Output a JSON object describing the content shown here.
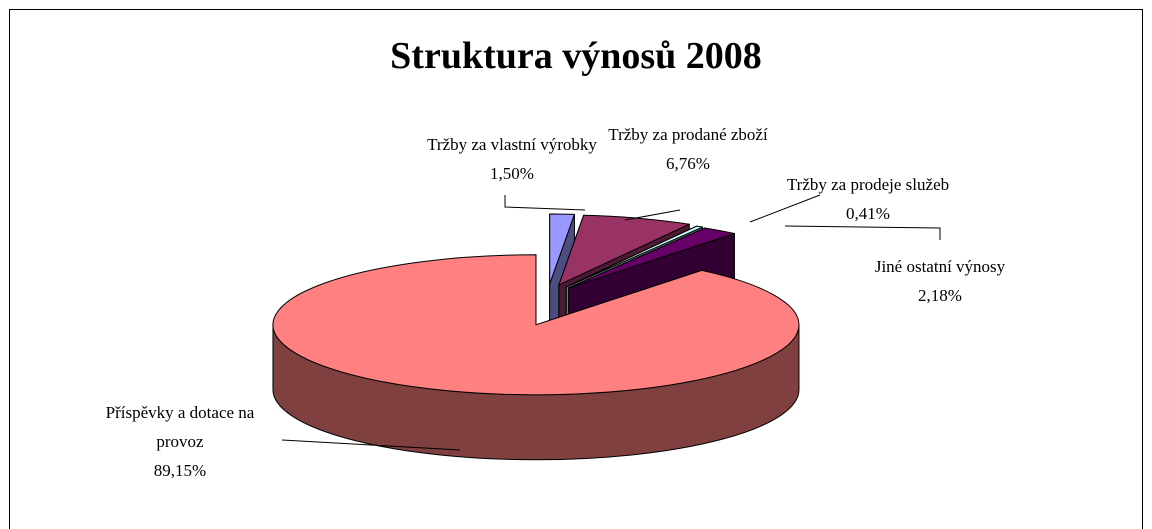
{
  "chart_data": {
    "type": "pie",
    "title": "Struktura výnosů 2008",
    "categories": [
      "Tržby za vlastní výrobky",
      "Tržby za prodané zboží",
      "Tržby za prodeje služeb",
      "Jiné ostatní výnosy",
      "Příspěvky a dotace na provoz"
    ],
    "values": [
      1.5,
      6.76,
      0.41,
      2.18,
      89.15
    ],
    "value_labels": [
      "1,50%",
      "6,76%",
      "0,41%",
      "2,18%",
      "89,15%"
    ],
    "colors": [
      "#9999ff",
      "#993366",
      "#ccffff",
      "#660066",
      "#ff8080"
    ]
  }
}
